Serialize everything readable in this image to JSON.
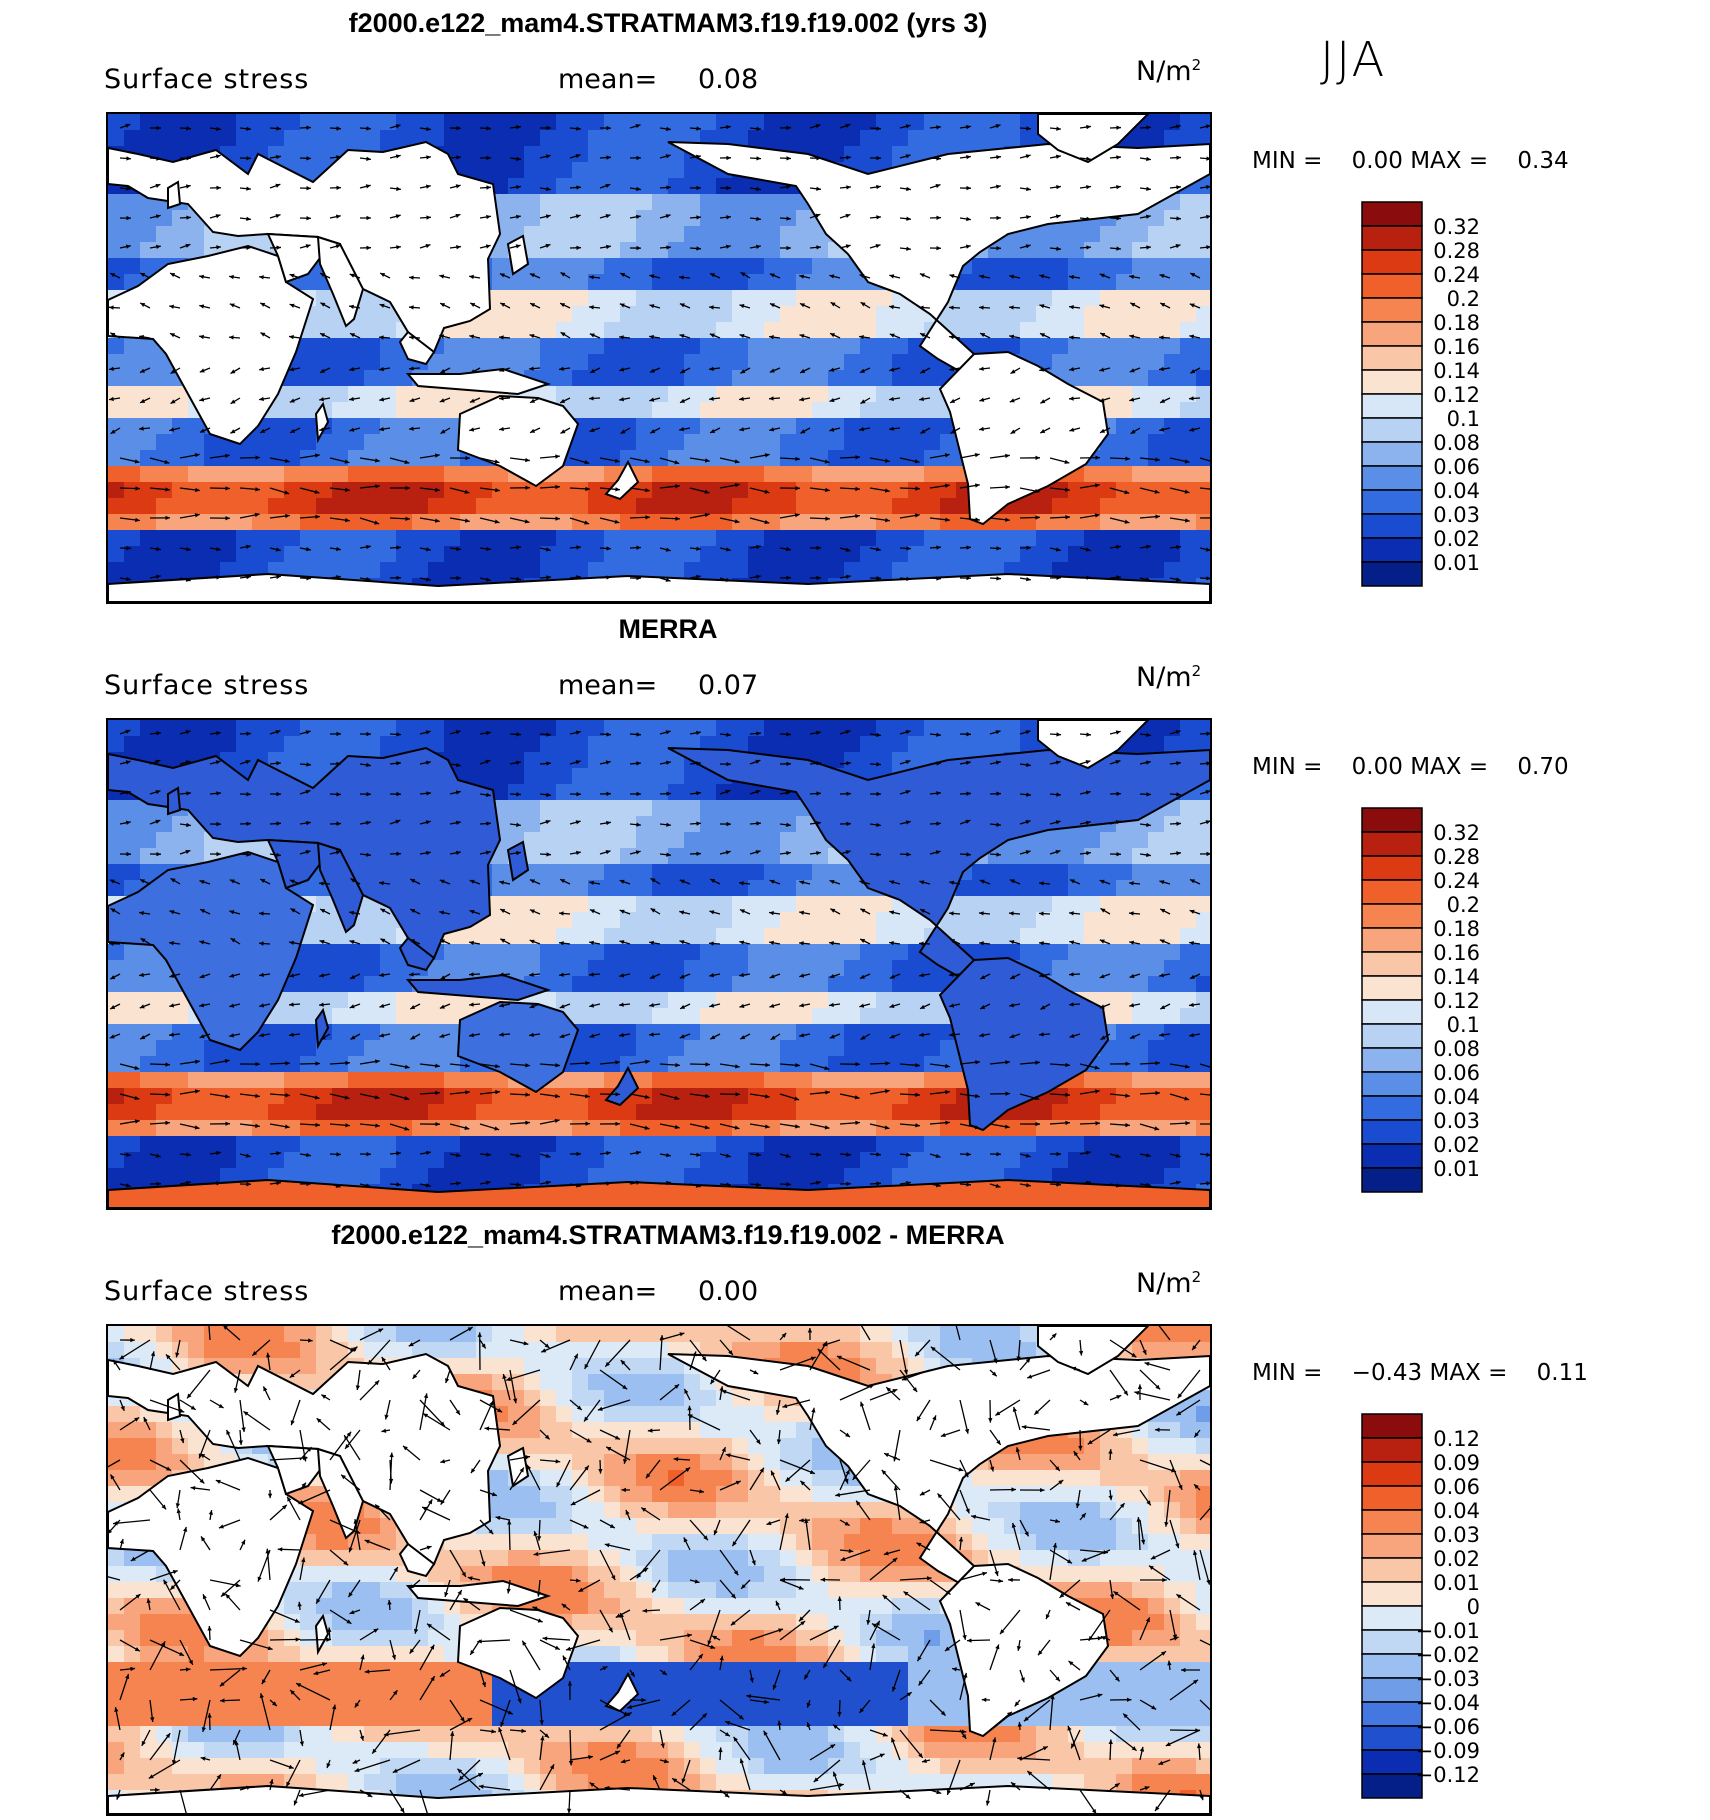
{
  "season": "JJA",
  "panels": [
    {
      "id": "model",
      "title": "f2000.e122_mam4.STRATMAM3.f19.f19.002 (yrs 3)",
      "variable": "Surface stress",
      "mean_label": "mean=",
      "mean_value": "0.08",
      "units": "N/m",
      "units_sup": "2",
      "min_label": "MIN =",
      "min_value": "0.00",
      "max_label": "MAX =",
      "max_value": "0.34",
      "colorbar_labels": [
        "0.32",
        "0.28",
        "0.24",
        "0.2",
        "0.18",
        "0.16",
        "0.14",
        "0.12",
        "0.1",
        "0.08",
        "0.06",
        "0.04",
        "0.03",
        "0.02",
        "0.01"
      ],
      "colorbar_colors": [
        "#8a0c0c",
        "#b8200f",
        "#db3a12",
        "#f0602a",
        "#f68451",
        "#f8a47c",
        "#f9c6a8",
        "#fbe3d1",
        "#d7e7f8",
        "#b8d2f4",
        "#8db3ee",
        "#5b8ee6",
        "#336ce0",
        "#1a4cd2",
        "#0b2db2",
        "#051f88"
      ],
      "field_type": "model"
    },
    {
      "id": "obs",
      "title": "MERRA",
      "variable": "Surface stress",
      "mean_label": "mean=",
      "mean_value": "0.07",
      "units": "N/m",
      "units_sup": "2",
      "min_label": "MIN =",
      "min_value": "0.00",
      "max_label": "MAX =",
      "max_value": "0.70",
      "colorbar_labels": [
        "0.32",
        "0.28",
        "0.24",
        "0.2",
        "0.18",
        "0.16",
        "0.14",
        "0.12",
        "0.1",
        "0.08",
        "0.06",
        "0.04",
        "0.03",
        "0.02",
        "0.01"
      ],
      "colorbar_colors": [
        "#8a0c0c",
        "#b8200f",
        "#db3a12",
        "#f0602a",
        "#f68451",
        "#f8a47c",
        "#f9c6a8",
        "#fbe3d1",
        "#d7e7f8",
        "#b8d2f4",
        "#8db3ee",
        "#5b8ee6",
        "#336ce0",
        "#1a4cd2",
        "#0b2db2",
        "#051f88"
      ],
      "field_type": "obs"
    },
    {
      "id": "diff",
      "title": "f2000.e122_mam4.STRATMAM3.f19.f19.002 - MERRA",
      "variable": "Surface stress",
      "mean_label": "mean=",
      "mean_value": "0.00",
      "units": "N/m",
      "units_sup": "2",
      "min_label": "MIN =",
      "min_value": "−0.43",
      "max_label": "MAX =",
      "max_value": "0.11",
      "colorbar_labels": [
        "0.12",
        "0.09",
        "0.06",
        "0.04",
        "0.03",
        "0.02",
        "0.01",
        "0",
        "−0.01",
        "−0.02",
        "−0.03",
        "−0.04",
        "−0.06",
        "−0.09",
        "−0.12"
      ],
      "colorbar_colors": [
        "#8a0c0c",
        "#b8200f",
        "#db3a12",
        "#f0602a",
        "#f68451",
        "#f8a47c",
        "#f9c6a8",
        "#fbe3d1",
        "#dceaf8",
        "#c0d8f4",
        "#9bbff0",
        "#6f9de8",
        "#4478e0",
        "#2150cf",
        "#0b2db2",
        "#051f88"
      ],
      "field_type": "diff"
    }
  ]
}
